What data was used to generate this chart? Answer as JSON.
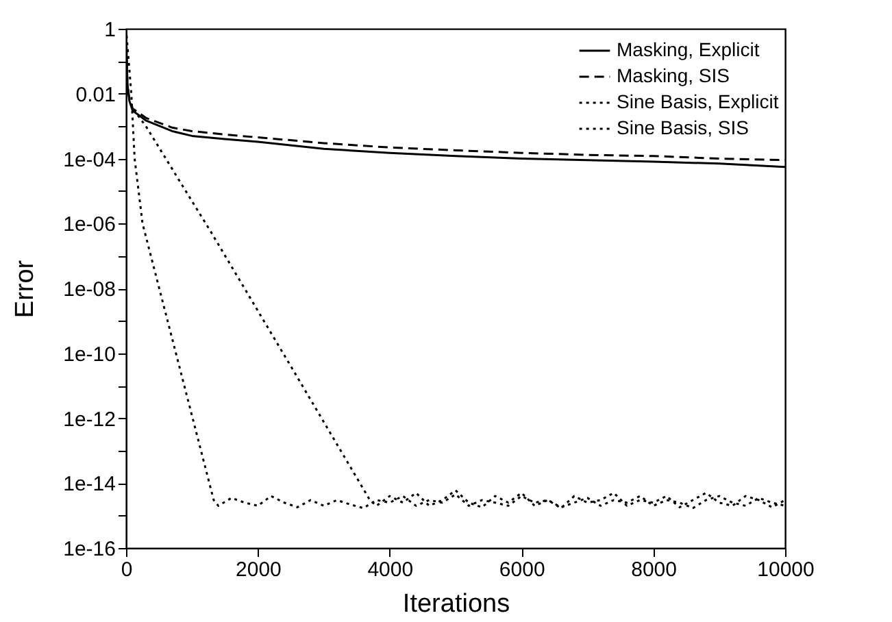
{
  "chart_data": {
    "type": "line",
    "xlabel": "Iterations",
    "ylabel": "Error",
    "log": "y",
    "legend": "top right",
    "grid": false,
    "marker": "none",
    "xlim": [
      0,
      10000
    ],
    "xticks": [
      0,
      2000,
      4000,
      6000,
      8000,
      10000
    ],
    "ylim": [
      1e-16,
      1
    ],
    "yticks": [
      1,
      {
        "value": 0.1,
        "label": null
      },
      0.01,
      {
        "value": 0.001,
        "label": null
      },
      {
        "value": 0.0001,
        "label": "1e-04"
      },
      {
        "value": 1e-05,
        "label": null
      },
      {
        "value": 1e-06,
        "label": "1e-06"
      },
      {
        "value": 1e-07,
        "label": null
      },
      {
        "value": 1e-08,
        "label": "1e-08"
      },
      {
        "value": 1e-09,
        "label": null
      },
      {
        "value": 1e-10,
        "label": "1e-10"
      },
      {
        "value": 1e-11,
        "label": null
      },
      {
        "value": 1e-12,
        "label": "1e-12"
      },
      {
        "value": 1e-13,
        "label": null
      },
      {
        "value": 1e-14,
        "label": "1e-14"
      },
      {
        "value": 1e-15,
        "label": null
      },
      {
        "value": 1e-16,
        "label": "1e-16"
      }
    ],
    "series": [
      {
        "name": "Masking, Explicit",
        "color": "#000000",
        "line_style": "solid",
        "x": [
          0,
          20,
          50,
          100,
          300,
          700,
          1000,
          1500,
          2000,
          3000,
          4000,
          5000,
          6000,
          7000,
          8000,
          9000,
          10000
        ],
        "values": [
          1,
          0.02,
          0.006,
          0.003,
          0.0015,
          0.0007,
          0.0005,
          0.0004,
          0.00033,
          0.0002,
          0.00015,
          0.00012,
          0.0001,
          9e-05,
          8e-05,
          7e-05,
          5.5e-05
        ]
      },
      {
        "name": "Masking, SIS",
        "color": "#000000",
        "line_style": "dashed",
        "x": [
          0,
          20,
          50,
          100,
          300,
          700,
          1000,
          1500,
          2000,
          3000,
          4000,
          5000,
          6000,
          7000,
          8000,
          9000,
          10000
        ],
        "values": [
          1,
          0.02,
          0.007,
          0.0035,
          0.0018,
          0.0009,
          0.0007,
          0.00055,
          0.00045,
          0.0003,
          0.00022,
          0.00018,
          0.00015,
          0.00013,
          0.00012,
          0.0001,
          9e-05
        ]
      },
      {
        "name": "Sine Basis, Explicit",
        "color": "#000000",
        "line_style": "dotted",
        "x": [
          0,
          20,
          50,
          100,
          300,
          1300,
          2500,
          3700,
          3800,
          4000,
          4200,
          4400,
          4600,
          4800,
          5000,
          5200,
          5400,
          5600,
          5800,
          6000,
          6200,
          6400,
          6600,
          6800,
          7000,
          7200,
          7400,
          7600,
          7800,
          8000,
          8200,
          8400,
          8600,
          8800,
          9000,
          9200,
          9400,
          9600,
          9800,
          10000
        ],
        "values": [
          1,
          0.02,
          0.007,
          0.0035,
          0.001,
          5e-07,
          4e-11,
          3e-15,
          2e-15,
          4e-15,
          2.5e-15,
          5e-15,
          2e-15,
          3e-15,
          6e-15,
          2.5e-15,
          1.8e-15,
          4e-15,
          2.5e-15,
          5e-15,
          2e-15,
          3e-15,
          1.7e-15,
          4e-15,
          2.5e-15,
          3e-15,
          5e-15,
          2e-15,
          3e-15,
          2.5e-15,
          4e-15,
          1.8e-15,
          3e-15,
          5e-15,
          2.5e-15,
          2e-15,
          4e-15,
          3e-15,
          1.8e-15,
          3e-15
        ]
      },
      {
        "name": "Sine Basis, SIS",
        "color": "#000000",
        "line_style": "dotted",
        "x": [
          0,
          80,
          130,
          250,
          1330,
          1400,
          1600,
          1800,
          2000,
          2200,
          2400,
          2600,
          2800,
          3000,
          3200,
          3400,
          3600,
          3800,
          4000,
          4200,
          4400,
          4600,
          4800,
          5000,
          5200,
          5400,
          5600,
          5800,
          6000,
          6200,
          6400,
          6600,
          6800,
          7000,
          7200,
          7400,
          7600,
          7800,
          8000,
          8200,
          8400,
          8600,
          8800,
          9000,
          9200,
          9400,
          9600,
          9800,
          10000
        ],
        "values": [
          1,
          0.01,
          0.0001,
          1e-06,
          3e-15,
          2e-15,
          3.5e-15,
          2.5e-15,
          2e-15,
          4e-15,
          2.5e-15,
          1.8e-15,
          3e-15,
          2e-15,
          3e-15,
          2.2e-15,
          1.7e-15,
          3e-15,
          2.5e-15,
          4e-15,
          2e-15,
          3e-15,
          2.5e-15,
          4.5e-15,
          2e-15,
          3e-15,
          2.5e-15,
          2e-15,
          4e-15,
          2.5e-15,
          3e-15,
          1.8e-15,
          2.5e-15,
          3.5e-15,
          2e-15,
          3e-15,
          2.5e-15,
          4e-15,
          2e-15,
          3e-15,
          2.5e-15,
          1.7e-15,
          3e-15,
          4e-15,
          2.5e-15,
          2e-15,
          3.5e-15,
          2.5e-15,
          2e-15
        ]
      }
    ]
  }
}
